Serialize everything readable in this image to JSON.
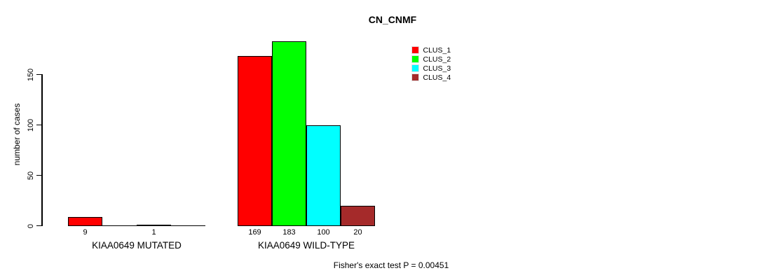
{
  "chart_data": {
    "type": "bar",
    "title": "CN_CNMF",
    "xlabel": "",
    "ylabel": "number of cases",
    "ylim": [
      0,
      150
    ],
    "yticks": [
      0,
      50,
      100,
      150
    ],
    "grid": false,
    "legend_position": "top-right",
    "categories": [
      "KIAA0649 MUTATED",
      "KIAA0649 WILD-TYPE"
    ],
    "series": [
      {
        "name": "CLUS_1",
        "color": "#ff0000",
        "values": [
          9,
          169
        ]
      },
      {
        "name": "CLUS_2",
        "color": "#00ff00",
        "values": [
          0,
          183
        ]
      },
      {
        "name": "CLUS_3",
        "color": "#00ffff",
        "values": [
          1,
          100
        ]
      },
      {
        "name": "CLUS_4",
        "color": "#a52a2a",
        "values": [
          0,
          20
        ]
      }
    ],
    "bar_value_labels": [
      "9",
      "1",
      "169",
      "183",
      "100",
      "20"
    ],
    "show_zero_value_labels": false,
    "annotation": "Fisher's exact test P = 0.00451"
  },
  "legend": {
    "items": [
      {
        "label": "CLUS_1",
        "color": "#ff0000"
      },
      {
        "label": "CLUS_2",
        "color": "#00ff00"
      },
      {
        "label": "CLUS_3",
        "color": "#00ffff"
      },
      {
        "label": "CLUS_4",
        "color": "#a52a2a"
      }
    ]
  },
  "colors": {
    "background": "#ffffff",
    "axis": "#000000",
    "text": "#000000"
  }
}
